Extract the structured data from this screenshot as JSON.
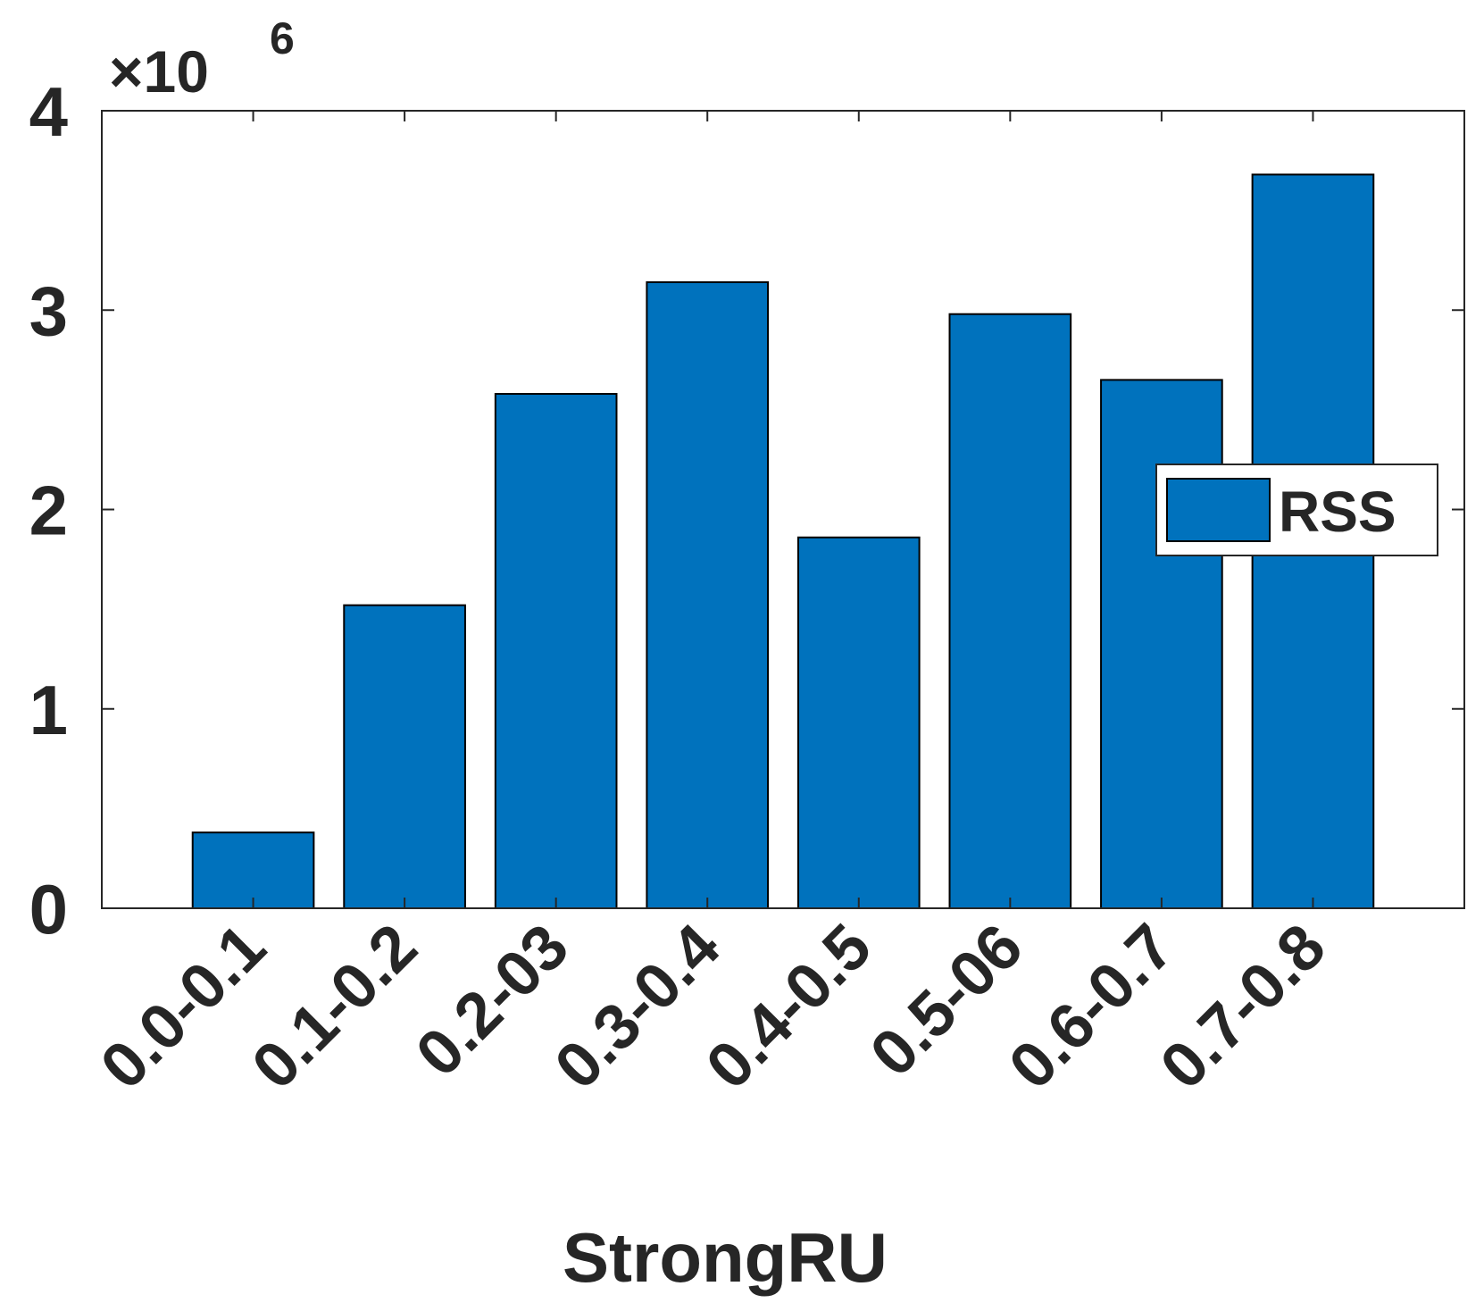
{
  "chart_data": {
    "type": "bar",
    "xlabel": "StrongRU",
    "ylabel": "",
    "y_exponent_label": "×10",
    "y_exponent_power": "6",
    "categories": [
      "0.0-0.1",
      "0.1-0.2",
      "0.2-03",
      "0.3-0.4",
      "0.4-0.5",
      "0.5-06",
      "0.6-0.7",
      "0.7-0.8"
    ],
    "series": [
      {
        "name": "RSS",
        "color": "#0072bd",
        "values": [
          0.38,
          1.52,
          2.58,
          3.14,
          1.86,
          2.98,
          2.65,
          3.68
        ]
      }
    ],
    "ylim": [
      0,
      4
    ],
    "yticks": [
      0,
      1,
      2,
      3,
      4
    ],
    "y_tick_labels": [
      "0",
      "1",
      "2",
      "3",
      "4"
    ],
    "legend_position": "right"
  }
}
